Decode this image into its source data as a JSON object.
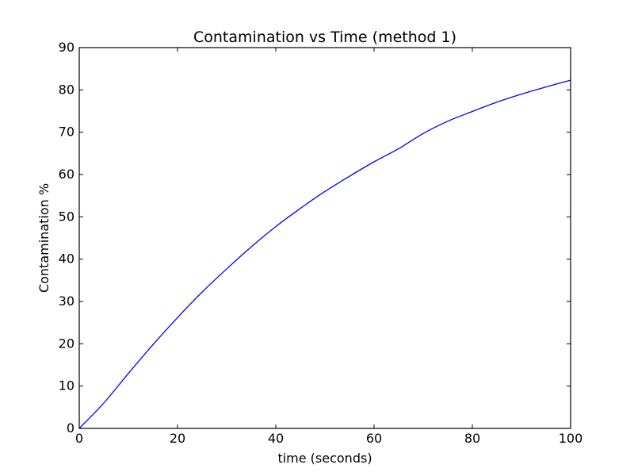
{
  "chart_data": {
    "type": "line",
    "title": "Contamination vs Time (method 1)",
    "xlabel": "time (seconds)",
    "ylabel": "Contamination %",
    "xlim": [
      0,
      100
    ],
    "ylim": [
      0,
      90
    ],
    "xticks": [
      0,
      20,
      40,
      60,
      80,
      100
    ],
    "yticks": [
      0,
      10,
      20,
      30,
      40,
      50,
      60,
      70,
      80,
      90
    ],
    "grid": false,
    "legend": false,
    "line_color": "#0000ff",
    "series": [
      {
        "x": [
          0,
          5,
          10,
          15,
          20,
          25,
          30,
          35,
          40,
          45,
          50,
          55,
          60,
          65,
          70,
          75,
          80,
          85,
          90,
          95,
          100
        ],
        "y": [
          0,
          6.0,
          13.0,
          19.8,
          26.2,
          32.2,
          37.7,
          42.9,
          47.7,
          52.0,
          56.0,
          59.6,
          63.0,
          66.1,
          69.7,
          72.6,
          74.9,
          77.1,
          79.0,
          80.7,
          82.3
        ]
      }
    ]
  }
}
